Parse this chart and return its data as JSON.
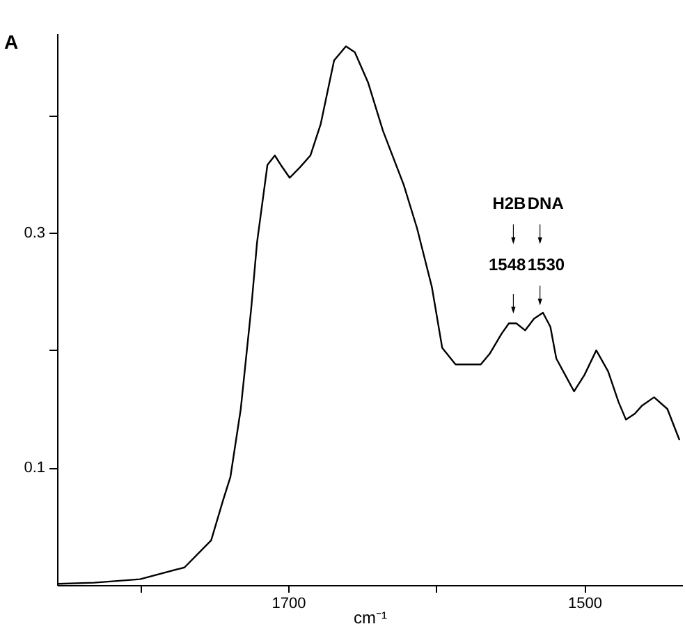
{
  "chart_data": {
    "type": "line",
    "title": "A",
    "xlabel": "cm⁻¹",
    "xlim": [
      1856,
      1434
    ],
    "ylim": [
      0,
      0.47
    ],
    "xticks": [
      {
        "value": 1800,
        "label": null
      },
      1700,
      {
        "value": 1600,
        "label": null
      },
      1500
    ],
    "yticks": [
      0.1,
      {
        "value": 0.2,
        "label": null
      },
      0.3,
      {
        "value": 0.4,
        "label": null
      }
    ],
    "series": [
      {
        "color": "#000000",
        "x": [
          1855,
          1831,
          1800,
          1770,
          1752,
          1744,
          1739,
          1732,
          1725,
          1721,
          1714,
          1709,
          1705,
          1699,
          1692,
          1685,
          1678,
          1669,
          1661,
          1655,
          1646,
          1636,
          1622,
          1613,
          1603,
          1596,
          1587,
          1570,
          1564,
          1556,
          1551,
          1546,
          1540,
          1534,
          1528,
          1523,
          1519,
          1513,
          1507,
          1500,
          1492,
          1484,
          1477,
          1472,
          1466,
          1461,
          1453,
          1444,
          1436
        ],
        "values": [
          0.001,
          0.002,
          0.005,
          0.015,
          0.038,
          0.072,
          0.092,
          0.15,
          0.235,
          0.292,
          0.358,
          0.366,
          0.358,
          0.347,
          0.356,
          0.366,
          0.393,
          0.447,
          0.459,
          0.454,
          0.428,
          0.387,
          0.341,
          0.304,
          0.254,
          0.202,
          0.188,
          0.188,
          0.197,
          0.214,
          0.223,
          0.223,
          0.217,
          0.227,
          0.232,
          0.22,
          0.193,
          0.179,
          0.165,
          0.179,
          0.2,
          0.182,
          0.156,
          0.141,
          0.146,
          0.153,
          0.16,
          0.15,
          0.124
        ]
      }
    ],
    "annotations": [
      "H2B",
      "DNA",
      {
        "text": "1548",
        "x": 1548,
        "y": 0.223
      },
      {
        "text": "1530",
        "x": 1530,
        "y": 0.23
      }
    ]
  }
}
